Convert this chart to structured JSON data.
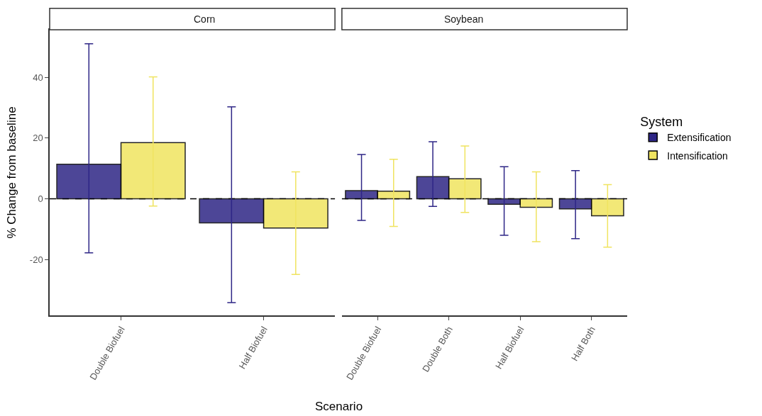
{
  "chart_data": [
    {
      "type": "bar",
      "title": "Corn",
      "ylabel": "% Change from baseline",
      "categories": [
        "Double Biofuel",
        "Half Biofuel"
      ],
      "ylim": [
        -38.4,
        55.7
      ],
      "yticks": [
        -20,
        0,
        20,
        40
      ],
      "grid": false,
      "legend": "right",
      "legend_title": "System",
      "series": [
        {
          "name": "Extensification",
          "color": "#2e2686",
          "values": [
            11.4,
            -7.9
          ],
          "errors": [
            [
              -17.8,
              51.1
            ],
            [
              -34.2,
              30.3
            ]
          ]
        },
        {
          "name": "Intensification",
          "color": "#f0e460",
          "values": [
            18.5,
            -9.6
          ],
          "errors": [
            [
              -2.4,
              40.2
            ],
            [
              -24.9,
              8.9
            ]
          ]
        }
      ],
      "ref_lines": [
        {
          "axis": "y",
          "value": 0,
          "label": null,
          "color": "#000000",
          "line_style": "dashed"
        }
      ]
    },
    {
      "type": "bar",
      "title": "Soybean",
      "xlabel": "Scenario",
      "categories": [
        "Double Biofuel",
        "Double Both",
        "Half Biofuel",
        "Half Both"
      ],
      "ylim": [
        -38.4,
        55.7
      ],
      "tick_labels": "x",
      "grid": false,
      "series": [
        {
          "color": "#2e2686",
          "values": [
            2.7,
            7.3,
            -1.8,
            -3.3
          ],
          "errors": [
            [
              -7.1,
              14.6
            ],
            [
              -2.5,
              18.8
            ],
            [
              -12.0,
              10.6
            ],
            [
              -13.1,
              9.3
            ]
          ]
        },
        {
          "color": "#f0e460",
          "values": [
            2.5,
            6.6,
            -2.8,
            -5.6
          ],
          "errors": [
            [
              -9.1,
              13.0
            ],
            [
              -4.5,
              17.4
            ],
            [
              -14.1,
              8.9
            ],
            [
              -15.9,
              4.7
            ]
          ]
        }
      ],
      "ref_lines": [
        {
          "axis": "y",
          "value": 0,
          "label": null,
          "color": "#000000",
          "line_style": "dashed"
        }
      ]
    }
  ]
}
